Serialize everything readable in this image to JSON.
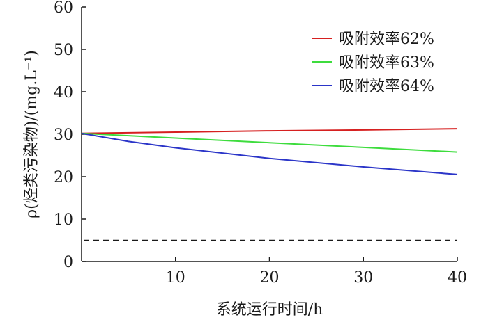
{
  "chart_data": {
    "type": "line",
    "xlabel": "系统运行时间/h",
    "ylabel": "ρ(烃类污染物)/(mg.L⁻¹)",
    "xlim": [
      0,
      40
    ],
    "ylim": [
      0,
      60
    ],
    "xticks": [
      10,
      20,
      30,
      40
    ],
    "yticks": [
      0,
      10,
      20,
      30,
      40,
      50,
      60
    ],
    "grid": false,
    "legend_position": "top-right",
    "series": [
      {
        "name": "吸附效率62%",
        "color": "#d62020",
        "x": [
          0,
          10,
          20,
          30,
          40
        ],
        "y": [
          30.2,
          30.5,
          30.8,
          31.0,
          31.3
        ]
      },
      {
        "name": "吸附效率63%",
        "color": "#3ddc3d",
        "x": [
          0,
          10,
          20,
          30,
          40
        ],
        "y": [
          30.2,
          29.1,
          28.0,
          26.9,
          25.8
        ]
      },
      {
        "name": "吸附效率64%",
        "color": "#2b35c8",
        "x": [
          0,
          5,
          10,
          20,
          30,
          40
        ],
        "y": [
          30.2,
          28.3,
          26.8,
          24.3,
          22.3,
          20.5
        ]
      }
    ],
    "reference_line": {
      "y": 5,
      "style": "dashed",
      "color": "#1a1a1a"
    }
  }
}
